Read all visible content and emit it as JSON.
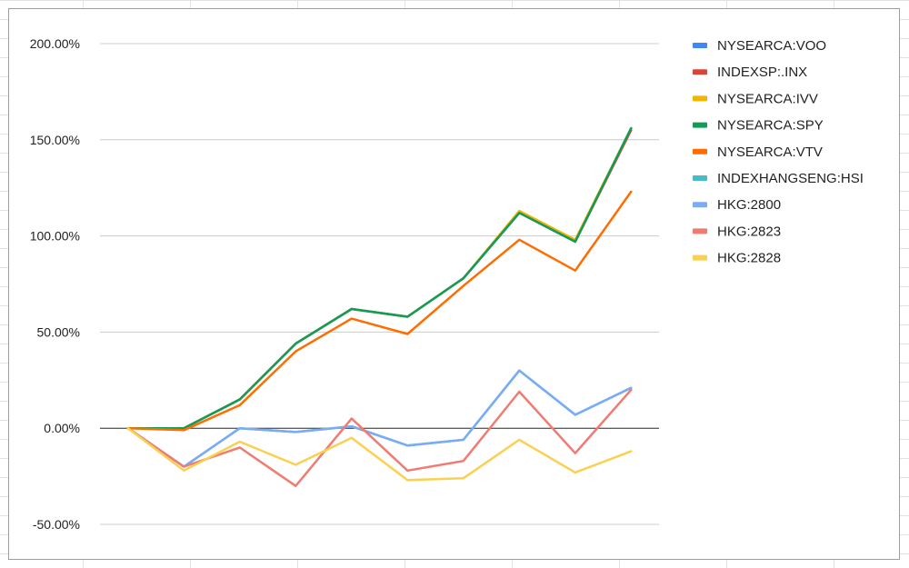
{
  "chart_data": {
    "type": "line",
    "title": "",
    "xlabel": "",
    "ylabel": "",
    "y_format": "percent",
    "ylim": [
      -0.5,
      2.0
    ],
    "yticks": [
      2.0,
      1.5,
      1.0,
      0.5,
      0.0,
      -0.5
    ],
    "ytick_labels": [
      "200.00%",
      "150.00%",
      "100.00%",
      "50.00%",
      "0.00%",
      "-50.00%"
    ],
    "gridlines": true,
    "zero_line": true,
    "legend_position": "right",
    "x": [
      0,
      1,
      2,
      3,
      4,
      5,
      6,
      7,
      8,
      9
    ],
    "series": [
      {
        "name": "NYSEARCA:VOO",
        "color": "#4285f4",
        "values": [
          0.0,
          0.0,
          0.15,
          0.44,
          0.62,
          0.58,
          0.78,
          1.12,
          0.97,
          1.56
        ]
      },
      {
        "name": "INDEXSP:.INX",
        "color": "#db4437",
        "values": [
          0.0,
          0.0,
          0.15,
          0.44,
          0.62,
          0.58,
          0.78,
          1.12,
          0.97,
          1.55
        ]
      },
      {
        "name": "NYSEARCA:IVV",
        "color": "#f4b400",
        "values": [
          0.0,
          0.0,
          0.15,
          0.44,
          0.62,
          0.58,
          0.78,
          1.13,
          0.98,
          1.56
        ]
      },
      {
        "name": "NYSEARCA:SPY",
        "color": "#0f9d58",
        "values": [
          0.0,
          0.0,
          0.15,
          0.44,
          0.62,
          0.58,
          0.78,
          1.12,
          0.97,
          1.56
        ]
      },
      {
        "name": "NYSEARCA:VTV",
        "color": "#ff6d01",
        "values": [
          0.0,
          -0.01,
          0.12,
          0.4,
          0.57,
          0.49,
          0.74,
          0.98,
          0.82,
          1.23
        ]
      },
      {
        "name": "INDEXHANGSENG:HSI",
        "color": "#46bdc6",
        "values": [
          0.0,
          -0.2,
          0.0,
          -0.02,
          0.01,
          -0.09,
          -0.06,
          0.3,
          0.07,
          0.21
        ]
      },
      {
        "name": "HKG:2800",
        "color": "#7baaf7",
        "values": [
          0.0,
          -0.2,
          0.0,
          -0.02,
          0.01,
          -0.09,
          -0.06,
          0.3,
          0.07,
          0.21
        ]
      },
      {
        "name": "HKG:2823",
        "color": "#f07b72",
        "values": [
          0.0,
          -0.2,
          -0.1,
          -0.3,
          0.05,
          -0.22,
          -0.17,
          0.19,
          -0.13,
          0.2
        ]
      },
      {
        "name": "HKG:2828",
        "color": "#fcd04f",
        "values": [
          0.0,
          -0.22,
          -0.07,
          -0.19,
          -0.05,
          -0.27,
          -0.26,
          -0.06,
          -0.23,
          -0.12
        ]
      }
    ]
  }
}
